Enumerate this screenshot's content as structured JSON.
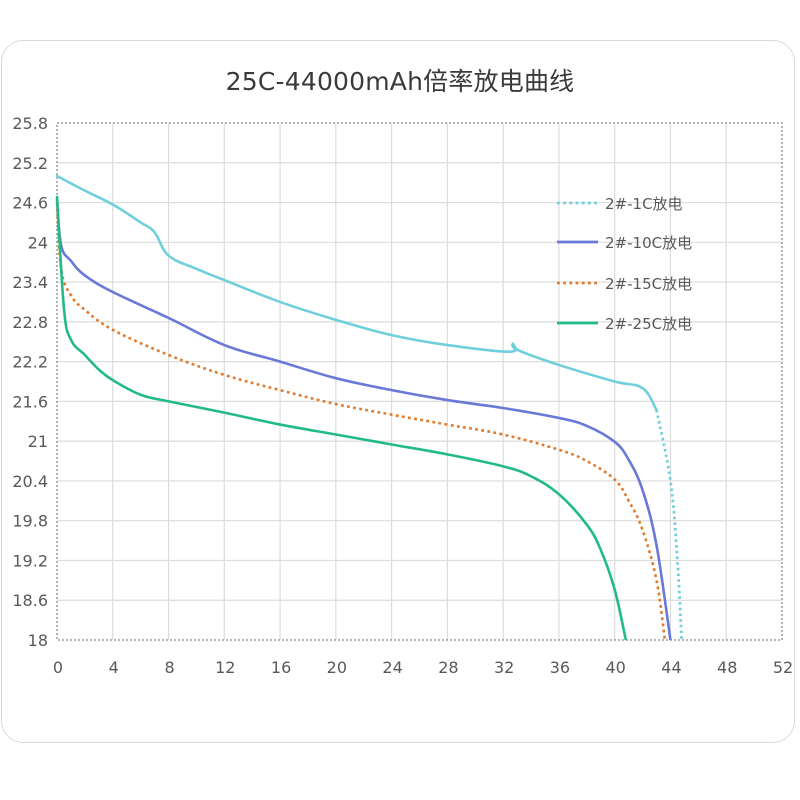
{
  "title": "25C-44000mAh倍率放电曲线",
  "colors": {
    "c1": "#6fcfdc",
    "c10": "#6a78d8",
    "c15": "#e07a2c",
    "c25": "#22bb84",
    "grid": "#dcdcdc",
    "border": "#8a8a8a"
  },
  "chart_data": {
    "type": "line",
    "title": "25C-44000mAh倍率放电曲线",
    "xlabel": "",
    "ylabel": "",
    "xlim": [
      0,
      52
    ],
    "ylim": [
      18,
      25.8
    ],
    "x_ticks": [
      "0",
      "4",
      "8",
      "12",
      "16",
      "20",
      "24",
      "28",
      "32",
      "36",
      "40",
      "44",
      "48",
      "52"
    ],
    "y_ticks": [
      "25.8",
      "25.2",
      "24.6",
      "24",
      "23.4",
      "22.8",
      "22.2",
      "21.6",
      "21",
      "20.4",
      "19.8",
      "19.2",
      "18.6",
      "18"
    ],
    "grid": true,
    "legend_position": "upper right (inside)",
    "series": [
      {
        "name": "2#-1C放电",
        "style": "dotted",
        "x": [
          0,
          2,
          4,
          6,
          7,
          8,
          10,
          12,
          16,
          20,
          24,
          28,
          32.5,
          32.7,
          33,
          36,
          40,
          42,
          43,
          44,
          44.5,
          44.8
        ],
        "y": [
          25.0,
          24.78,
          24.57,
          24.3,
          24.15,
          23.8,
          23.6,
          23.43,
          23.1,
          22.83,
          22.6,
          22.45,
          22.35,
          22.47,
          22.38,
          22.15,
          21.9,
          21.8,
          21.47,
          20.4,
          19.2,
          18.0
        ]
      },
      {
        "name": "2#-10C放电",
        "style": "solid",
        "x": [
          0,
          0.3,
          1,
          2,
          4,
          8,
          12,
          16,
          20,
          24,
          28,
          32,
          36,
          38,
          40,
          41,
          42,
          43,
          44
        ],
        "y": [
          24.65,
          23.95,
          23.72,
          23.5,
          23.25,
          22.86,
          22.45,
          22.2,
          21.95,
          21.77,
          21.62,
          21.5,
          21.35,
          21.23,
          20.99,
          20.72,
          20.26,
          19.43,
          18.0
        ]
      },
      {
        "name": "2#-15C放电",
        "style": "dotted",
        "x": [
          0,
          0.3,
          1,
          2,
          4,
          8,
          12,
          16,
          20,
          24,
          28,
          32,
          36,
          38,
          40,
          41,
          42,
          43,
          43.6
        ],
        "y": [
          24.6,
          23.6,
          23.2,
          22.98,
          22.68,
          22.3,
          22.0,
          21.77,
          21.56,
          21.4,
          21.25,
          21.1,
          20.87,
          20.7,
          20.42,
          20.1,
          19.66,
          18.9,
          18.0
        ]
      },
      {
        "name": "2#-25C放电",
        "style": "solid",
        "x": [
          0,
          0.5,
          1,
          2,
          3,
          4,
          6,
          8,
          12,
          16,
          20,
          24,
          28,
          32,
          34,
          36,
          38,
          39,
          40,
          40.8
        ],
        "y": [
          24.7,
          23.0,
          22.53,
          22.3,
          22.08,
          21.92,
          21.7,
          21.6,
          21.43,
          21.25,
          21.1,
          20.95,
          20.8,
          20.62,
          20.47,
          20.2,
          19.74,
          19.36,
          18.76,
          18.0
        ]
      }
    ]
  },
  "legend": [
    {
      "label": "2#-1C放电",
      "color_key": "c1",
      "style": "dotted"
    },
    {
      "label": "2#-10C放电",
      "color_key": "c10",
      "style": "solid"
    },
    {
      "label": "2#-15C放电",
      "color_key": "c15",
      "style": "dotted"
    },
    {
      "label": "2#-25C放电",
      "color_key": "c25",
      "style": "solid"
    }
  ]
}
